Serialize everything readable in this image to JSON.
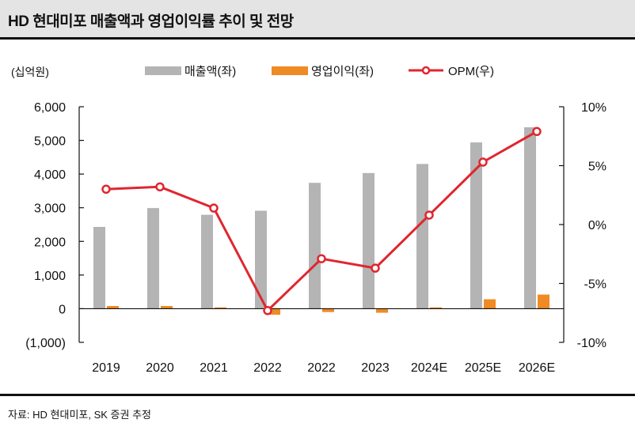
{
  "title": "HD 현대미포 매출액과 영업이익률 추이 및 전망",
  "source": "자료: HD 현대미포, SK 증권 추정",
  "colors": {
    "revenue": "#b4b4b4",
    "op_profit": "#f08a24",
    "opm": "#e0262f",
    "axis": "#111111"
  },
  "chart_data": {
    "type": "bar",
    "unit_label": "(십억원)",
    "categories": [
      "2019",
      "2020",
      "2021",
      "2022",
      "2022",
      "2023",
      "2024E",
      "2025E",
      "2026E"
    ],
    "y_left": {
      "min": -1000,
      "max": 6000,
      "ticks": [
        -1000,
        0,
        1000,
        2000,
        3000,
        4000,
        5000,
        6000
      ],
      "tick_labels": [
        "(1,000)",
        "0",
        "1,000",
        "2,000",
        "3,000",
        "4,000",
        "5,000",
        "6,000"
      ]
    },
    "y_right": {
      "min": -10,
      "max": 10,
      "ticks": [
        -10,
        -5,
        0,
        5,
        10
      ],
      "tick_labels": [
        "-10%",
        "-5%",
        "0%",
        "5%",
        "10%"
      ]
    },
    "series": [
      {
        "name": "매출액(좌)",
        "type": "bar",
        "axis": "left",
        "values": [
          2430,
          2990,
          2790,
          2910,
          3740,
          4030,
          4300,
          4940,
          5390
        ]
      },
      {
        "name": "영업이익(좌)",
        "type": "bar",
        "axis": "left",
        "values": [
          80,
          80,
          40,
          -180,
          -100,
          -120,
          40,
          280,
          420
        ]
      },
      {
        "name": "OPM(우)",
        "type": "line",
        "axis": "right",
        "values": [
          3.0,
          3.2,
          1.4,
          -7.3,
          -2.9,
          -3.7,
          0.8,
          5.3,
          7.9
        ]
      }
    ]
  }
}
